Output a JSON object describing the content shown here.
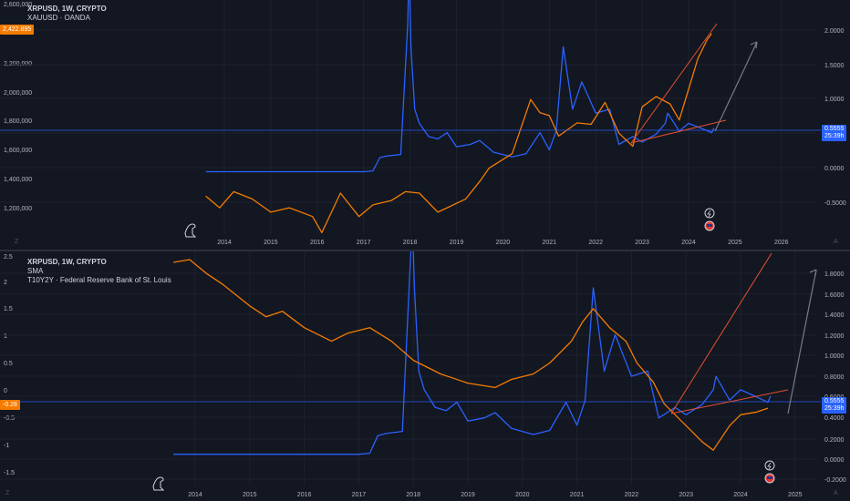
{
  "colors": {
    "background": "#131722",
    "grid": "#1e222d",
    "axis_text": "#b2b5be",
    "xrp": "#2962ff",
    "overlay": "#f57c00",
    "trendline": "#e4502f",
    "projection": "#787b86",
    "price_line": "#2962ff"
  },
  "top_pane": {
    "legend": {
      "line1": "XRPUSD, 1W, CRYPTO",
      "line2": "XAUUSD · OANDA"
    },
    "left_price_tag": "2,422.895",
    "right_tag_line1": "0.5555",
    "right_tag_line2": "25:39h",
    "corner_left": "Z",
    "corner_right": "A",
    "events": {
      "lightning_icon": "⚡",
      "flag_icon": "flag"
    }
  },
  "bottom_pane": {
    "legend": {
      "line1": "XRPUSD, 1W, CRYPTO",
      "line2": "SMA",
      "line3": "T10Y2Y · Federal Reserve Bank of St. Louis"
    },
    "left_price_tag": "-0.28",
    "right_tag_line1": "0.5555",
    "right_tag_line2": "25:39h",
    "corner_left": "Z",
    "corner_right": "A"
  },
  "chart_data": [
    {
      "type": "line",
      "title": "XRPUSD, 1W, CRYPTO",
      "x_axis_ticks": [
        "2014",
        "2015",
        "2016",
        "2017",
        "2018",
        "2019",
        "2020",
        "2021",
        "2022",
        "2023",
        "2024",
        "2025",
        "2026"
      ],
      "left_axis_ticks": [
        "2,600,000",
        "2,200,000",
        "2,000,000",
        "1,800,000",
        "1,600,000",
        "1,400,000",
        "1,200,000"
      ],
      "right_axis_ticks": [
        "2.0000",
        "1.5000",
        "1.0000",
        "0.5000",
        "0.0000",
        "-0.5000"
      ],
      "right_ylim": [
        -0.8,
        2.2
      ],
      "left_ylim": [
        1050,
        2650
      ],
      "series": [
        {
          "name": "XRPUSD",
          "axis": "right",
          "x": [
            2013.6,
            2014.0,
            2015.0,
            2016.0,
            2017.0,
            2017.2,
            2017.35,
            2017.5,
            2017.8,
            2017.95,
            2017.98,
            2018.02,
            2018.1,
            2018.2,
            2018.4,
            2018.6,
            2018.8,
            2019.0,
            2019.3,
            2019.5,
            2019.8,
            2020.0,
            2020.2,
            2020.5,
            2020.8,
            2021.0,
            2021.15,
            2021.3,
            2021.5,
            2021.7,
            2021.85,
            2022.0,
            2022.3,
            2022.5,
            2022.8,
            2023.0,
            2023.3,
            2023.5,
            2023.55,
            2023.8,
            2024.0,
            2024.3,
            2024.5,
            2024.55
          ],
          "y": [
            0.0,
            0.0,
            0.0,
            0.0,
            0.0,
            0.01,
            0.18,
            0.2,
            0.22,
            1.9,
            3.3,
            1.6,
            0.8,
            0.62,
            0.45,
            0.42,
            0.5,
            0.32,
            0.35,
            0.4,
            0.25,
            0.22,
            0.19,
            0.23,
            0.5,
            0.28,
            0.52,
            1.6,
            0.8,
            1.15,
            0.95,
            0.75,
            0.8,
            0.35,
            0.45,
            0.38,
            0.48,
            0.62,
            0.75,
            0.52,
            0.62,
            0.55,
            0.5,
            0.56
          ]
        },
        {
          "name": "XAUUSD",
          "axis": "left",
          "x": [
            2013.6,
            2013.9,
            2014.2,
            2014.6,
            2015.0,
            2015.4,
            2015.9,
            2016.1,
            2016.5,
            2016.9,
            2017.2,
            2017.6,
            2017.9,
            2018.2,
            2018.6,
            2018.8,
            2019.2,
            2019.5,
            2019.7,
            2020.0,
            2020.2,
            2020.6,
            2020.8,
            2021.0,
            2021.2,
            2021.6,
            2021.9,
            2022.2,
            2022.5,
            2022.8,
            2023.0,
            2023.3,
            2023.6,
            2023.8,
            2024.0,
            2024.2,
            2024.4,
            2024.5
          ],
          "y": [
            1310,
            1230,
            1340,
            1290,
            1200,
            1230,
            1170,
            1060,
            1330,
            1170,
            1250,
            1280,
            1340,
            1330,
            1200,
            1230,
            1290,
            1410,
            1500,
            1560,
            1600,
            1970,
            1880,
            1860,
            1720,
            1810,
            1800,
            1950,
            1740,
            1650,
            1920,
            1990,
            1940,
            1830,
            2040,
            2250,
            2380,
            2420
          ]
        }
      ],
      "annotations": [
        "trend line on gold",
        "support line on XRP",
        "projection arrow"
      ]
    },
    {
      "type": "line",
      "title": "XRPUSD, 1W, CRYPTO",
      "x_axis_ticks": [
        "2014",
        "2015",
        "2016",
        "2017",
        "2018",
        "2019",
        "2020",
        "2021",
        "2022",
        "2023",
        "2024",
        "2025"
      ],
      "left_axis_ticks": [
        "2.5",
        "2",
        "1.5",
        "1",
        "0.5",
        "0",
        "-0.5",
        "-1",
        "-1.5"
      ],
      "right_axis_ticks": [
        "1.8000",
        "1.6000",
        "1.4000",
        "1.2000",
        "1.0000",
        "0.8000",
        "0.6000",
        "0.4000",
        "0.2000",
        "0.0000",
        "-0.2000"
      ],
      "right_ylim": [
        -0.3,
        1.95
      ],
      "left_ylim": [
        -1.7,
        2.6
      ],
      "series": [
        {
          "name": "XRPUSD",
          "axis": "right",
          "x": [
            2013.6,
            2014.0,
            2015.0,
            2016.0,
            2017.0,
            2017.2,
            2017.35,
            2017.5,
            2017.8,
            2017.95,
            2017.98,
            2018.02,
            2018.1,
            2018.2,
            2018.4,
            2018.6,
            2018.8,
            2019.0,
            2019.3,
            2019.5,
            2019.8,
            2020.0,
            2020.2,
            2020.5,
            2020.8,
            2021.0,
            2021.15,
            2021.3,
            2021.5,
            2021.7,
            2021.85,
            2022.0,
            2022.3,
            2022.5,
            2022.8,
            2023.0,
            2023.3,
            2023.5,
            2023.55,
            2023.8,
            2024.0,
            2024.3,
            2024.5,
            2024.55
          ],
          "y": [
            0.0,
            0.0,
            0.0,
            0.0,
            0.0,
            0.01,
            0.18,
            0.2,
            0.22,
            1.9,
            3.3,
            1.6,
            0.8,
            0.62,
            0.45,
            0.42,
            0.5,
            0.32,
            0.35,
            0.4,
            0.25,
            0.22,
            0.19,
            0.23,
            0.5,
            0.28,
            0.52,
            1.6,
            0.8,
            1.15,
            0.95,
            0.75,
            0.8,
            0.35,
            0.45,
            0.38,
            0.48,
            0.62,
            0.75,
            0.52,
            0.62,
            0.55,
            0.5,
            0.56
          ]
        },
        {
          "name": "T10Y2Y",
          "axis": "left",
          "x": [
            2013.6,
            2013.9,
            2014.2,
            2014.5,
            2015.0,
            2015.3,
            2015.6,
            2016.0,
            2016.5,
            2016.8,
            2017.2,
            2017.6,
            2018.0,
            2018.5,
            2019.0,
            2019.5,
            2019.8,
            2020.2,
            2020.5,
            2020.9,
            2021.1,
            2021.3,
            2021.6,
            2021.9,
            2022.1,
            2022.4,
            2022.6,
            2022.9,
            2023.1,
            2023.3,
            2023.5,
            2023.8,
            2024.0,
            2024.3,
            2024.5
          ],
          "y": [
            2.4,
            2.45,
            2.2,
            2.0,
            1.6,
            1.4,
            1.5,
            1.2,
            0.95,
            1.1,
            1.2,
            0.95,
            0.6,
            0.35,
            0.18,
            0.1,
            0.25,
            0.35,
            0.55,
            0.95,
            1.3,
            1.55,
            1.2,
            0.95,
            0.55,
            0.2,
            -0.2,
            -0.5,
            -0.7,
            -0.9,
            -1.05,
            -0.6,
            -0.4,
            -0.35,
            -0.28
          ]
        }
      ],
      "annotations": [
        "trend line",
        "support line on XRP",
        "projection arrow"
      ]
    }
  ]
}
